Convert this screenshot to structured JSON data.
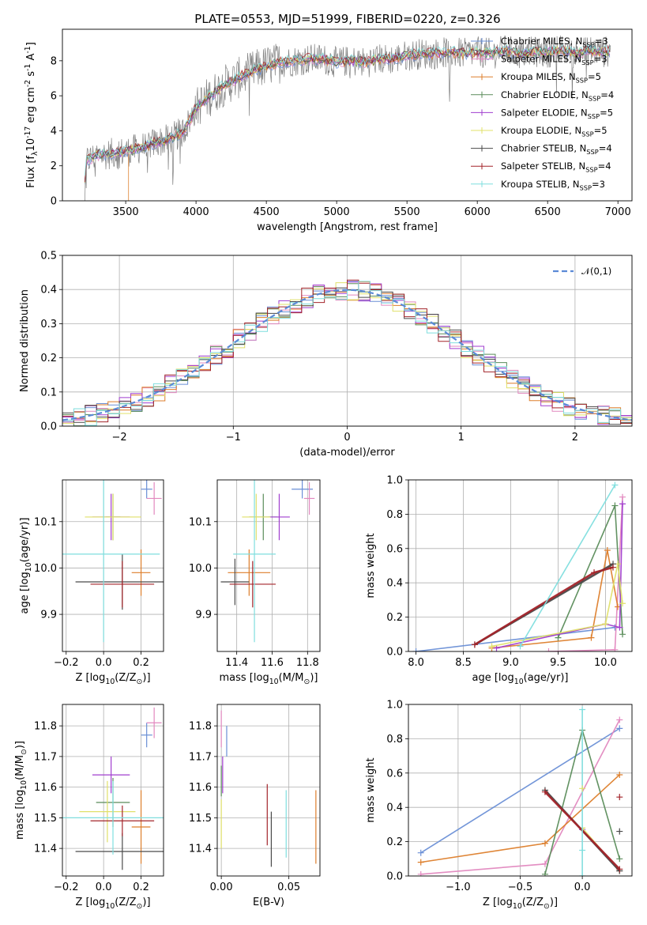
{
  "figure_title": "PLATE=0553, MJD=51999, FIBERID=0220, z=0.326",
  "colors": {
    "chabrier_miles": "#6a8fd6",
    "salpeter_miles": "#e288bf",
    "kroupa_miles": "#dd7e2b",
    "chabrier_elodie": "#5a8c5a",
    "salpeter_elodie": "#a13ecf",
    "kroupa_elodie": "#e0e06a",
    "chabrier_stelib": "#4a4a4a",
    "salpeter_stelib": "#a3242a",
    "kroupa_stelib": "#7fdede",
    "data_gray": "#808080"
  },
  "chart_data": [
    {
      "id": "spectrum",
      "type": "line",
      "title": "PLATE=0553, MJD=51999, FIBERID=0220, z=0.326",
      "xlabel": "wavelength [Angstrom, rest frame]",
      "ylabel": "Flux [f$_\\lambda$10$^{-17}$ erg cm$^{-2}$ s$^{-1}$ A$^{-1}$]",
      "xlim": [
        3050,
        7100
      ],
      "ylim": [
        0,
        9.8
      ],
      "xticks": [
        3500,
        4000,
        4500,
        5000,
        5500,
        6000,
        6500,
        7000
      ],
      "yticks": [
        0,
        2,
        4,
        6,
        8
      ],
      "grid": false,
      "legend_position": "top-right",
      "series": [
        {
          "name": "Chabrier MILES, N$_{SSP}$=3",
          "color_key": "chabrier_miles"
        },
        {
          "name": "Salpeter MILES, N$_{SSP}$=3",
          "color_key": "salpeter_miles"
        },
        {
          "name": "Kroupa MILES, N$_{SSP}$=5",
          "color_key": "kroupa_miles"
        },
        {
          "name": "Chabrier ELODIE, N$_{SSP}$=4",
          "color_key": "chabrier_elodie"
        },
        {
          "name": "Salpeter ELODIE, N$_{SSP}$=5",
          "color_key": "salpeter_elodie"
        },
        {
          "name": "Kroupa ELODIE, N$_{SSP}$=5",
          "color_key": "kroupa_elodie"
        },
        {
          "name": "Chabrier STELIB, N$_{SSP}$=4",
          "color_key": "chabrier_stelib"
        },
        {
          "name": "Salpeter STELIB, N$_{SSP}$=4",
          "color_key": "salpeter_stelib"
        },
        {
          "name": "Kroupa STELIB, N$_{SSP}$=3",
          "color_key": "kroupa_stelib"
        }
      ],
      "continuum": {
        "x": [
          3200,
          3220,
          3300,
          3400,
          3500,
          3600,
          3700,
          3800,
          3900,
          3950,
          4000,
          4100,
          4200,
          4300,
          4400,
          4500,
          4600,
          4700,
          4800,
          4900,
          5000,
          5100,
          5200,
          5300,
          5400,
          5500,
          5600,
          5700,
          5800,
          5900,
          6000,
          6100,
          6200,
          6300,
          6400,
          6500,
          6600,
          6700,
          6800,
          6900,
          7000
        ],
        "y": [
          0,
          2.3,
          2.6,
          2.7,
          2.8,
          3.0,
          3.3,
          3.5,
          3.9,
          4.5,
          5.3,
          6.0,
          6.6,
          7.0,
          7.4,
          7.7,
          7.9,
          8.0,
          8.1,
          8.1,
          7.9,
          8.0,
          7.9,
          8.1,
          8.1,
          8.3,
          8.4,
          8.4,
          8.5,
          8.4,
          8.5,
          8.4,
          8.6,
          8.4,
          8.5,
          8.5,
          8.6,
          8.4,
          8.6,
          8.5,
          8.6
        ]
      }
    },
    {
      "id": "residuals",
      "type": "histogram",
      "xlabel": "(data-model)/error",
      "ylabel": "Normed distribution",
      "xlim": [
        -2.5,
        2.5
      ],
      "ylim": [
        0,
        0.5
      ],
      "xticks": [
        -2,
        -1,
        0,
        1,
        2
      ],
      "yticks": [
        0.0,
        0.1,
        0.2,
        0.3,
        0.4,
        0.5
      ],
      "grid": true,
      "legend_position": "top-right",
      "reference_curve": {
        "name": "$\\mathcal{N}(0,1)$",
        "type": "gaussian",
        "mean": 0,
        "sigma": 1
      },
      "bin_width": 0.1,
      "bin_start": -2.5
    },
    {
      "id": "age_vs_Z",
      "type": "errorbar",
      "xlabel": "Z [log$_{10}$(Z/Z$_\\odot$)]",
      "ylabel": "age  [log$_{10}$(age/yr)]",
      "xlim": [
        -0.22,
        0.32
      ],
      "ylim": [
        9.82,
        10.19
      ],
      "xticks": [
        -0.2,
        0.0,
        0.2
      ],
      "yticks": [
        9.9,
        10.0,
        10.1
      ],
      "grid": true,
      "points": [
        {
          "key": "chabrier_miles",
          "x": 0.23,
          "y": 10.17,
          "xerr": 0.03,
          "yerr": 0.02
        },
        {
          "key": "salpeter_miles",
          "x": 0.27,
          "y": 10.15,
          "xerr": 0.04,
          "yerr": 0.035
        },
        {
          "key": "kroupa_miles",
          "x": 0.2,
          "y": 9.99,
          "xerr": 0.05,
          "yerr": 0.05
        },
        {
          "key": "chabrier_elodie",
          "x": 0.05,
          "y": 10.11,
          "xerr": 0.04,
          "yerr": 0.05
        },
        {
          "key": "salpeter_elodie",
          "x": 0.04,
          "y": 10.11,
          "xerr": 0.1,
          "yerr": 0.05
        },
        {
          "key": "kroupa_elodie",
          "x": 0.05,
          "y": 10.11,
          "xerr": 0.15,
          "yerr": 0.05
        },
        {
          "key": "chabrier_stelib",
          "x": 0.1,
          "y": 9.97,
          "xerr": 0.25,
          "yerr": 0.06
        },
        {
          "key": "salpeter_stelib",
          "x": 0.1,
          "y": 9.965,
          "xerr": 0.17,
          "yerr": 0.05
        },
        {
          "key": "kroupa_stelib",
          "x": 0.0,
          "y": 10.03,
          "xerr": 0.3,
          "yerr": 0.19
        }
      ]
    },
    {
      "id": "age_vs_mass",
      "type": "errorbar",
      "xlabel": "mass [log$_{10}$(M/M$_\\odot$)]",
      "ylabel": "",
      "xlim": [
        11.29,
        11.87
      ],
      "ylim": [
        9.82,
        10.19
      ],
      "xticks": [
        11.4,
        11.6,
        11.8
      ],
      "yticks": [
        9.9,
        10.0,
        10.1
      ],
      "grid": true,
      "points": [
        {
          "key": "chabrier_miles",
          "x": 11.77,
          "y": 10.17,
          "xerr": 0.06,
          "yerr": 0.02
        },
        {
          "key": "salpeter_miles",
          "x": 11.81,
          "y": 10.15,
          "xerr": 0.03,
          "yerr": 0.035
        },
        {
          "key": "kroupa_miles",
          "x": 11.47,
          "y": 9.99,
          "xerr": 0.12,
          "yerr": 0.05
        },
        {
          "key": "chabrier_elodie",
          "x": 11.55,
          "y": 10.11,
          "xerr": 0.08,
          "yerr": 0.05
        },
        {
          "key": "salpeter_elodie",
          "x": 11.64,
          "y": 10.11,
          "xerr": 0.06,
          "yerr": 0.05
        },
        {
          "key": "kroupa_elodie",
          "x": 11.51,
          "y": 10.11,
          "xerr": 0.08,
          "yerr": 0.05
        },
        {
          "key": "chabrier_stelib",
          "x": 11.39,
          "y": 9.97,
          "xerr": 0.08,
          "yerr": 0.05
        },
        {
          "key": "salpeter_stelib",
          "x": 11.49,
          "y": 9.965,
          "xerr": 0.13,
          "yerr": 0.05
        },
        {
          "key": "kroupa_stelib",
          "x": 11.5,
          "y": 10.03,
          "xerr": 0.12,
          "yerr": 0.19
        }
      ]
    },
    {
      "id": "weight_vs_age",
      "type": "line",
      "xlabel": "age  [log$_{10}$(age/yr)]",
      "ylabel": "mass weight",
      "xlim": [
        7.92,
        10.28
      ],
      "ylim": [
        0,
        1
      ],
      "xticks": [
        8.0,
        8.5,
        9.0,
        9.5,
        10.0
      ],
      "yticks": [
        0.0,
        0.2,
        0.4,
        0.6,
        0.8,
        1.0
      ],
      "grid": true,
      "series": [
        {
          "key": "chabrier_miles",
          "x": [
            8.0,
            10.1
          ],
          "y": [
            0.0,
            0.14
          ]
        },
        {
          "key": "salpeter_miles",
          "x": [
            9.4,
            10.1,
            10.18
          ],
          "y": [
            0.0,
            0.01,
            0.9
          ]
        },
        {
          "key": "kroupa_miles",
          "x": [
            8.8,
            9.85,
            10.02,
            10.13
          ],
          "y": [
            0.02,
            0.08,
            0.59,
            0.26
          ]
        },
        {
          "key": "chabrier_elodie",
          "x": [
            9.5,
            10.1,
            10.18
          ],
          "y": [
            0.08,
            0.85,
            0.1
          ]
        },
        {
          "key": "salpeter_elodie",
          "x": [
            8.85,
            10.0,
            10.15,
            10.18
          ],
          "y": [
            0.02,
            0.16,
            0.14,
            0.86
          ]
        },
        {
          "key": "kroupa_elodie",
          "x": [
            8.8,
            10.0,
            10.13,
            10.18
          ],
          "y": [
            0.03,
            0.16,
            0.51,
            0.28
          ]
        },
        {
          "key": "chabrier_stelib",
          "x": [
            8.62,
            10.08
          ],
          "y": [
            0.04,
            0.51
          ]
        },
        {
          "key": "salpeter_stelib",
          "x": [
            8.62,
            9.88,
            10.08
          ],
          "y": [
            0.04,
            0.46,
            0.49
          ]
        },
        {
          "key": "kroupa_stelib",
          "x": [
            9.1,
            10.1
          ],
          "y": [
            0.03,
            0.97
          ]
        }
      ]
    },
    {
      "id": "mass_vs_Z",
      "type": "errorbar",
      "xlabel": "Z [log$_{10}$(Z/Z$_\\odot$)]",
      "ylabel": "mass [log$_{10}$(M/M$_\\odot$)]",
      "xlim": [
        -0.22,
        0.32
      ],
      "ylim": [
        11.31,
        11.87
      ],
      "xticks": [
        -0.2,
        0.0,
        0.2
      ],
      "yticks": [
        11.4,
        11.5,
        11.6,
        11.7,
        11.8
      ],
      "grid": true,
      "points": [
        {
          "key": "chabrier_miles",
          "x": 0.23,
          "y": 11.77,
          "xerr": 0.03,
          "yerr": 0.04
        },
        {
          "key": "salpeter_miles",
          "x": 0.27,
          "y": 11.81,
          "xerr": 0.04,
          "yerr": 0.05
        },
        {
          "key": "kroupa_miles",
          "x": 0.2,
          "y": 11.47,
          "xerr": 0.05,
          "yerr": 0.12
        },
        {
          "key": "chabrier_elodie",
          "x": 0.05,
          "y": 11.55,
          "xerr": 0.09,
          "yerr": 0.08
        },
        {
          "key": "salpeter_elodie",
          "x": 0.04,
          "y": 11.64,
          "xerr": 0.1,
          "yerr": 0.06
        },
        {
          "key": "kroupa_elodie",
          "x": 0.02,
          "y": 11.52,
          "xerr": 0.15,
          "yerr": 0.1
        },
        {
          "key": "chabrier_stelib",
          "x": 0.1,
          "y": 11.39,
          "xerr": 0.25,
          "yerr": 0.06
        },
        {
          "key": "salpeter_stelib",
          "x": 0.1,
          "y": 11.49,
          "xerr": 0.17,
          "yerr": 0.05
        },
        {
          "key": "kroupa_stelib",
          "x": 0.05,
          "y": 11.5,
          "xerr": 0.3,
          "yerr": 0.12
        }
      ]
    },
    {
      "id": "mass_vs_ebv",
      "type": "errorbar",
      "xlabel": "E(B-V)",
      "ylabel": "",
      "xlim": [
        -0.003,
        0.073
      ],
      "ylim": [
        11.31,
        11.87
      ],
      "xticks": [
        0.0,
        0.05
      ],
      "yticks": [
        11.4,
        11.5,
        11.6,
        11.7,
        11.8
      ],
      "grid": true,
      "points": [
        {
          "key": "chabrier_miles",
          "x": 0.004,
          "y": 11.75,
          "xerr": 0.0,
          "yerr": 0.05
        },
        {
          "key": "salpeter_miles",
          "x": 0.0,
          "y": 11.79,
          "xerr": 0.0,
          "yerr": 0.06
        },
        {
          "key": "kroupa_miles",
          "x": 0.07,
          "y": 11.47,
          "xerr": 0.0,
          "yerr": 0.12
        },
        {
          "key": "chabrier_elodie",
          "x": 0.0,
          "y": 11.62,
          "xerr": 0.0,
          "yerr": 0.05
        },
        {
          "key": "salpeter_elodie",
          "x": 0.001,
          "y": 11.64,
          "xerr": 0.0,
          "yerr": 0.06
        },
        {
          "key": "kroupa_elodie",
          "x": 0.0,
          "y": 11.48,
          "xerr": 0.0,
          "yerr": 0.08
        },
        {
          "key": "chabrier_stelib",
          "x": 0.037,
          "y": 11.43,
          "xerr": 0.0,
          "yerr": 0.09
        },
        {
          "key": "salpeter_stelib",
          "x": 0.034,
          "y": 11.51,
          "xerr": 0.0,
          "yerr": 0.1
        },
        {
          "key": "kroupa_stelib",
          "x": 0.048,
          "y": 11.48,
          "xerr": 0.0,
          "yerr": 0.11
        }
      ]
    },
    {
      "id": "weight_vs_Z",
      "type": "line",
      "xlabel": "Z [log$_{10}$(Z/Z$_\\odot$)]",
      "ylabel": "mass weight",
      "xlim": [
        -1.4,
        0.4
      ],
      "ylim": [
        0,
        1
      ],
      "xticks": [
        -1.0,
        -0.5,
        0.0
      ],
      "yticks": [
        0.0,
        0.2,
        0.4,
        0.6,
        0.8,
        1.0
      ],
      "grid": true,
      "series": [
        {
          "key": "chabrier_miles",
          "x": [
            -1.3,
            0.3
          ],
          "y": [
            0.135,
            0.86
          ]
        },
        {
          "key": "salpeter_miles",
          "x": [
            -1.3,
            -0.3,
            0.3
          ],
          "y": [
            0.01,
            0.07,
            0.91
          ]
        },
        {
          "key": "kroupa_miles",
          "x": [
            -1.3,
            -0.3,
            0.3
          ],
          "y": [
            0.08,
            0.19,
            0.59
          ]
        },
        {
          "key": "chabrier_elodie",
          "x": [
            -0.3,
            0.0,
            0.3
          ],
          "y": [
            0.01,
            0.85,
            0.1
          ]
        },
        {
          "key": "salpeter_elodie",
          "x": [
            0.0,
            0.3
          ],
          "y": [
            0.27,
            0.03
          ]
        },
        {
          "key": "kroupa_elodie",
          "x": [
            0.0,
            0.3
          ],
          "y": [
            0.28,
            0.03
          ]
        },
        {
          "key": "chabrier_stelib",
          "x": [
            -0.3,
            0.3
          ],
          "y": [
            0.5,
            0.03
          ]
        },
        {
          "key": "salpeter_stelib",
          "x": [
            -0.3,
            0.3
          ],
          "y": [
            0.49,
            0.04
          ]
        },
        {
          "key": "kroupa_stelib",
          "x": [
            0.0,
            0.0
          ],
          "y": [
            0.0,
            0.97
          ]
        }
      ],
      "extra_markers": [
        {
          "key": "salpeter_stelib",
          "x": 0.3,
          "y": 0.46
        },
        {
          "key": "kroupa_elodie",
          "x": 0.0,
          "y": 0.51
        },
        {
          "key": "kroupa_stelib",
          "x": 0.0,
          "y": 0.15
        },
        {
          "key": "chabrier_stelib",
          "x": 0.3,
          "y": 0.26
        }
      ]
    }
  ]
}
